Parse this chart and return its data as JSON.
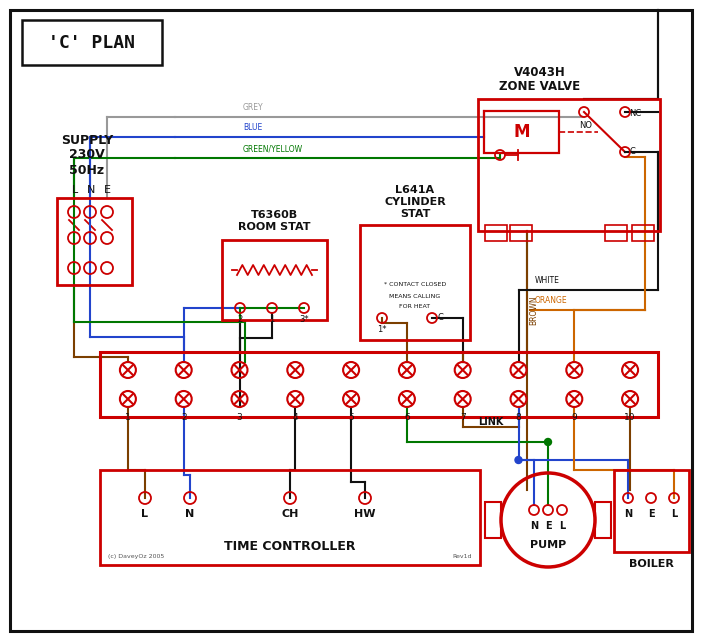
{
  "bg": "#ffffff",
  "RED": "#cc0000",
  "BLUE": "#2244cc",
  "GREEN": "#007700",
  "BROWN": "#7b3f00",
  "GREY": "#999999",
  "ORANGE": "#cc6600",
  "BLACK": "#111111",
  "title": "'C' PLAN",
  "supply_lines": [
    "SUPPLY",
    "230V",
    "50Hz"
  ],
  "lne": [
    "L",
    "N",
    "E"
  ],
  "zone_valve_lines": [
    "V4043H",
    "ZONE VALVE"
  ],
  "room_stat_lines": [
    "T6360B",
    "ROOM STAT"
  ],
  "cyl_stat_lines": [
    "L641A",
    "CYLINDER",
    "STAT"
  ],
  "tc_label": "TIME CONTROLLER",
  "pump_label": "PUMP",
  "boiler_label": "BOILER",
  "link_label": "LINK",
  "footnote": "(c) DaveyOz 2005",
  "rev": "Rev1d",
  "grey_label": "GREY",
  "blue_label": "BLUE",
  "gy_label": "GREEN/YELLOW",
  "brown_label": "BROWN",
  "white_label": "WHITE",
  "orange_label": "ORANGE",
  "contact_note": [
    "* CONTACT CLOSED",
    "MEANS CALLING",
    "FOR HEAT"
  ]
}
